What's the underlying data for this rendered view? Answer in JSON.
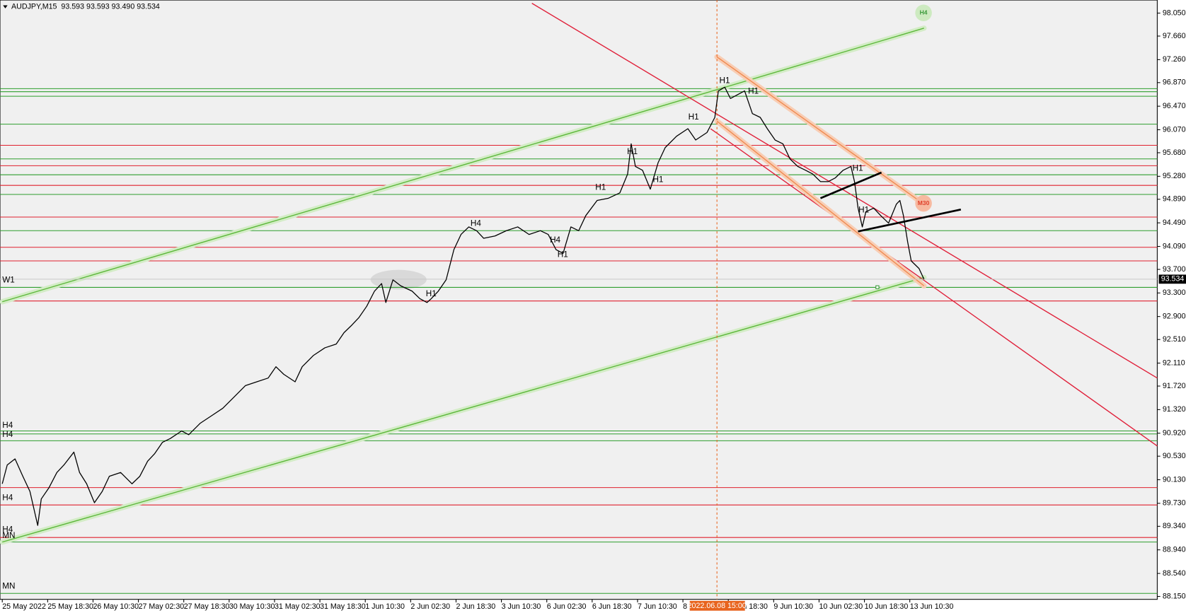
{
  "chart_data": {
    "type": "line",
    "title": "AUDJPY,M15  93.593 93.593 93.490 93.534",
    "xlim": [
      0,
      1629
    ],
    "ylim": [
      88.1,
      98.22
    ],
    "xticks": [
      {
        "value": 0,
        "label": "25 May 2022"
      },
      {
        "value": 64,
        "label": "25 May 18:30"
      },
      {
        "value": 128,
        "label": "26 May 10:30"
      },
      {
        "value": 192,
        "label": "27 May 02:30"
      },
      {
        "value": 256,
        "label": "27 May 18:30"
      },
      {
        "value": 320,
        "label": "30 May 10:30"
      },
      {
        "value": 384,
        "label": "31 May 02:30"
      },
      {
        "value": 448,
        "label": "31 May 18:30"
      },
      {
        "value": 512,
        "label": "1 Jun 10:30"
      },
      {
        "value": 576,
        "label": "2 Jun 02:30"
      },
      {
        "value": 640,
        "label": "2 Jun 18:30"
      },
      {
        "value": 704,
        "label": "3 Jun 10:30"
      },
      {
        "value": 768,
        "label": "6 Jun 02:30"
      },
      {
        "value": 832,
        "label": "6 Jun 18:30"
      },
      {
        "value": 896,
        "label": "7 Jun 10:30"
      },
      {
        "value": 960,
        "label": "8 Jun 02:30"
      },
      {
        "value": 1024,
        "label": "8 Jun 18:30"
      },
      {
        "value": 1088,
        "label": "9 Jun 10:30"
      },
      {
        "value": 1152,
        "label": "10 Jun 02:30"
      },
      {
        "value": 1216,
        "label": "10 Jun 18:30"
      },
      {
        "value": 1280,
        "label": "13 Jun 10:30"
      }
    ],
    "yticks": [
      {
        "value": 98.05,
        "label": "98.050"
      },
      {
        "value": 97.66,
        "label": "97.660"
      },
      {
        "value": 97.26,
        "label": "97.260"
      },
      {
        "value": 96.87,
        "label": "96.870"
      },
      {
        "value": 96.47,
        "label": "96.470"
      },
      {
        "value": 96.07,
        "label": "96.070"
      },
      {
        "value": 95.68,
        "label": "95.680"
      },
      {
        "value": 95.28,
        "label": "95.280"
      },
      {
        "value": 94.89,
        "label": "94.890"
      },
      {
        "value": 94.49,
        "label": "94.490"
      },
      {
        "value": 94.09,
        "label": "94.090"
      },
      {
        "value": 93.7,
        "label": "93.700"
      },
      {
        "value": 93.3,
        "label": "93.300"
      },
      {
        "value": 92.9,
        "label": "92.900"
      },
      {
        "value": 92.51,
        "label": "92.510"
      },
      {
        "value": 92.11,
        "label": "92.110"
      },
      {
        "value": 91.72,
        "label": "91.720"
      },
      {
        "value": 91.32,
        "label": "91.320"
      },
      {
        "value": 90.92,
        "label": "90.920"
      },
      {
        "value": 90.53,
        "label": "90.530"
      },
      {
        "value": 90.13,
        "label": "90.130"
      },
      {
        "value": 89.73,
        "label": "89.730"
      },
      {
        "value": 89.34,
        "label": "89.340"
      },
      {
        "value": 88.94,
        "label": "88.940"
      },
      {
        "value": 88.54,
        "label": "88.540"
      },
      {
        "value": 88.15,
        "label": "88.150"
      }
    ],
    "series": [
      {
        "color": "#000000",
        "x": [
          0,
          7,
          18,
          29,
          39,
          50,
          55,
          66,
          77,
          87,
          101,
          109,
          119,
          130,
          141,
          151,
          167,
          183,
          194,
          205,
          215,
          226,
          237,
          253,
          263,
          279,
          295,
          311,
          327,
          343,
          359,
          375,
          386,
          397,
          413,
          423,
          439,
          455,
          471,
          482,
          493,
          503,
          514,
          525,
          535,
          541,
          551,
          562,
          578,
          589,
          599,
          605,
          615,
          626,
          637,
          647,
          658,
          669,
          679,
          695,
          711,
          727,
          743,
          759,
          770,
          781,
          791,
          802,
          813,
          823,
          839,
          855,
          871,
          882,
          887,
          893,
          903,
          914,
          925,
          935,
          951,
          967,
          978,
          994,
          1005,
          1010,
          1019,
          1027,
          1037,
          1047,
          1058,
          1069,
          1079,
          1090,
          1101,
          1111,
          1122,
          1133,
          1143,
          1154,
          1165,
          1175,
          1186,
          1197,
          1202,
          1207,
          1213,
          1218,
          1229,
          1239,
          1250,
          1261,
          1266,
          1271,
          1277,
          1282,
          1293,
          1300
        ],
        "values": [
          90.061,
          90.381,
          90.484,
          90.189,
          89.932,
          89.355,
          89.804,
          89.997,
          90.253,
          90.381,
          90.599,
          90.253,
          90.061,
          89.74,
          89.932,
          90.189,
          90.253,
          90.061,
          90.189,
          90.445,
          90.574,
          90.766,
          90.83,
          90.958,
          90.894,
          91.087,
          91.215,
          91.343,
          91.535,
          91.728,
          91.792,
          91.856,
          92.048,
          91.92,
          91.792,
          92.048,
          92.241,
          92.369,
          92.433,
          92.626,
          92.754,
          92.882,
          93.074,
          93.331,
          93.459,
          93.138,
          93.523,
          93.421,
          93.331,
          93.203,
          93.138,
          93.203,
          93.331,
          93.523,
          94.036,
          94.293,
          94.421,
          94.357,
          94.228,
          94.267,
          94.357,
          94.421,
          94.293,
          94.357,
          94.293,
          94.036,
          93.972,
          94.421,
          94.357,
          94.613,
          94.87,
          94.908,
          94.998,
          95.319,
          95.831,
          95.447,
          95.383,
          95.062,
          95.511,
          95.767,
          95.96,
          96.088,
          95.896,
          96.024,
          96.28,
          96.729,
          96.793,
          96.601,
          96.665,
          96.729,
          96.344,
          96.28,
          96.088,
          95.896,
          95.831,
          95.575,
          95.447,
          95.383,
          95.319,
          95.19,
          95.19,
          95.254,
          95.383,
          95.447,
          95.19,
          94.741,
          94.421,
          94.677,
          94.741,
          94.613,
          94.485,
          94.806,
          94.87,
          94.613,
          94.164,
          93.844,
          93.715,
          93.534
        ]
      }
    ],
    "levels": [
      {
        "value": 96.768,
        "color": "#2e9e2e"
      },
      {
        "value": 96.716,
        "color": "#2e9e2e"
      },
      {
        "value": 96.639,
        "color": "#2e9e2e"
      },
      {
        "value": 96.165,
        "color": "#2e9e2e"
      },
      {
        "value": 95.575,
        "color": "#2e9e2e"
      },
      {
        "value": 95.306,
        "color": "#2e9e2e"
      },
      {
        "value": 94.972,
        "color": "#2e9e2e"
      },
      {
        "value": 94.357,
        "color": "#2e9e2e"
      },
      {
        "value": 93.395,
        "color": "#2e9e2e"
      },
      {
        "value": 90.958,
        "color": "#2e9e2e"
      },
      {
        "value": 90.907,
        "color": "#2e9e2e"
      },
      {
        "value": 90.792,
        "color": "#2e9e2e"
      },
      {
        "value": 89.073,
        "color": "#2e9e2e"
      },
      {
        "value": 88.201,
        "color": "#2e9e2e"
      },
      {
        "value": 95.806,
        "color": "#e0202e"
      },
      {
        "value": 95.46,
        "color": "#e0202e"
      },
      {
        "value": 95.126,
        "color": "#e0202e"
      },
      {
        "value": 94.588,
        "color": "#e0202e"
      },
      {
        "value": 94.075,
        "color": "#e0202e"
      },
      {
        "value": 93.844,
        "color": "#e0202e"
      },
      {
        "value": 93.164,
        "color": "#e0202e"
      },
      {
        "value": 89.997,
        "color": "#e0202e"
      },
      {
        "value": 89.702,
        "color": "#e0202e"
      },
      {
        "value": 89.15,
        "color": "#e0202e"
      }
    ],
    "lines": [
      {
        "color": "#5cb83a",
        "halo": "#d3ecc6",
        "x": [
          0,
          1300
        ],
        "values": [
          93.151,
          97.794
        ]
      },
      {
        "color": "#5cb83a",
        "halo": "#d3ecc6",
        "x": [
          0,
          1300
        ],
        "values": [
          89.073,
          93.562
        ]
      },
      {
        "color": "#e0203a",
        "halo": "none",
        "x": [
          747,
          1629
        ],
        "values": [
          98.217,
          91.856
        ]
      },
      {
        "color": "#e0203a",
        "halo": "none",
        "x": [
          999,
          1629
        ],
        "values": [
          96.088,
          90.702
        ]
      },
      {
        "color": "#f08a50",
        "halo": "#f8cdb4",
        "x": [
          1008,
          1300
        ],
        "values": [
          97.306,
          94.806
        ]
      },
      {
        "color": "#f08a50",
        "halo": "#f8cdb4",
        "x": [
          1008,
          1300
        ],
        "values": [
          96.216,
          93.421
        ]
      },
      {
        "color": "#000000",
        "halo": "none",
        "x": [
          1154,
          1240
        ],
        "values": [
          94.908,
          95.344
        ]
      },
      {
        "color": "#000000",
        "halo": "none",
        "x": [
          1207,
          1352
        ],
        "values": [
          94.344,
          94.716
        ]
      }
    ],
    "marker": {
      "x": 1008,
      "label": "2022.06.08 15:00"
    },
    "last_price": 93.534,
    "annotations": [
      "W1",
      "H4",
      "H4",
      "H4",
      "H4",
      "MN",
      "MN",
      "H1",
      "H1",
      "H1",
      "H1",
      "H1",
      "H1",
      "H1",
      "H1",
      "H1",
      "H4",
      "H4",
      "H4",
      "M30",
      "H1"
    ]
  }
}
